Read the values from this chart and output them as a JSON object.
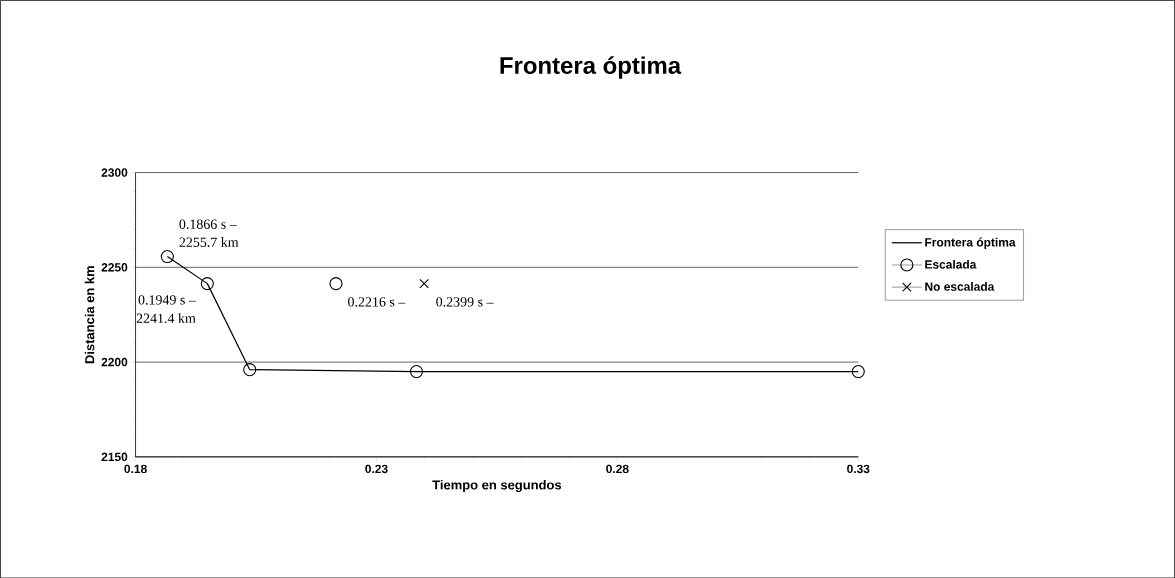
{
  "chart_data": {
    "type": "line",
    "title": "Frontera óptima",
    "xlabel": "Tiempo en segundos",
    "ylabel": "Distancia en km",
    "xlim": [
      0.18,
      0.33
    ],
    "xticks": [
      0.18,
      0.23,
      0.28,
      0.33
    ],
    "ylim": [
      2150,
      2300
    ],
    "yticks": [
      2150,
      2200,
      2250,
      2300
    ],
    "grid": "y",
    "legend": "right",
    "series": [
      {
        "name": "Frontera óptima",
        "type": "line",
        "color": "#000000",
        "marker": "none",
        "line_style": "solid",
        "x": [
          0.1866,
          0.1949,
          0.2037,
          0.2383,
          0.33
        ],
        "values": [
          2255.7,
          2241.4,
          2196,
          2195,
          2195
        ]
      },
      {
        "name": "Escalada",
        "type": "scatter",
        "color": "#000000",
        "marker": "circle",
        "x": [
          0.1866,
          0.1949,
          0.2037,
          0.2216,
          0.2383,
          0.33
        ],
        "values": [
          2255.7,
          2241.4,
          2196,
          2241.4,
          2195,
          2195
        ]
      },
      {
        "name": "No escalada",
        "type": "scatter",
        "color": "#000000",
        "marker": "cross",
        "x": [
          0.2399
        ],
        "values": [
          2241.4
        ]
      }
    ],
    "annotations": [
      {
        "text": "0.1866 s –",
        "x": 0.1866,
        "y": 2255.7
      },
      {
        "text": "2255.7 km",
        "x": 0.1866,
        "y": 2255.7
      },
      {
        "text": "0.1949 s –",
        "x": 0.1949,
        "y": 2241.4
      },
      {
        "text": "2241.4 km",
        "x": 0.1949,
        "y": 2241.4
      },
      {
        "text": "0.2216 s –",
        "x": 0.2216,
        "y": 2241.4
      },
      {
        "text": "0.2399 s –",
        "x": 0.2399,
        "y": 2241.4
      }
    ]
  }
}
